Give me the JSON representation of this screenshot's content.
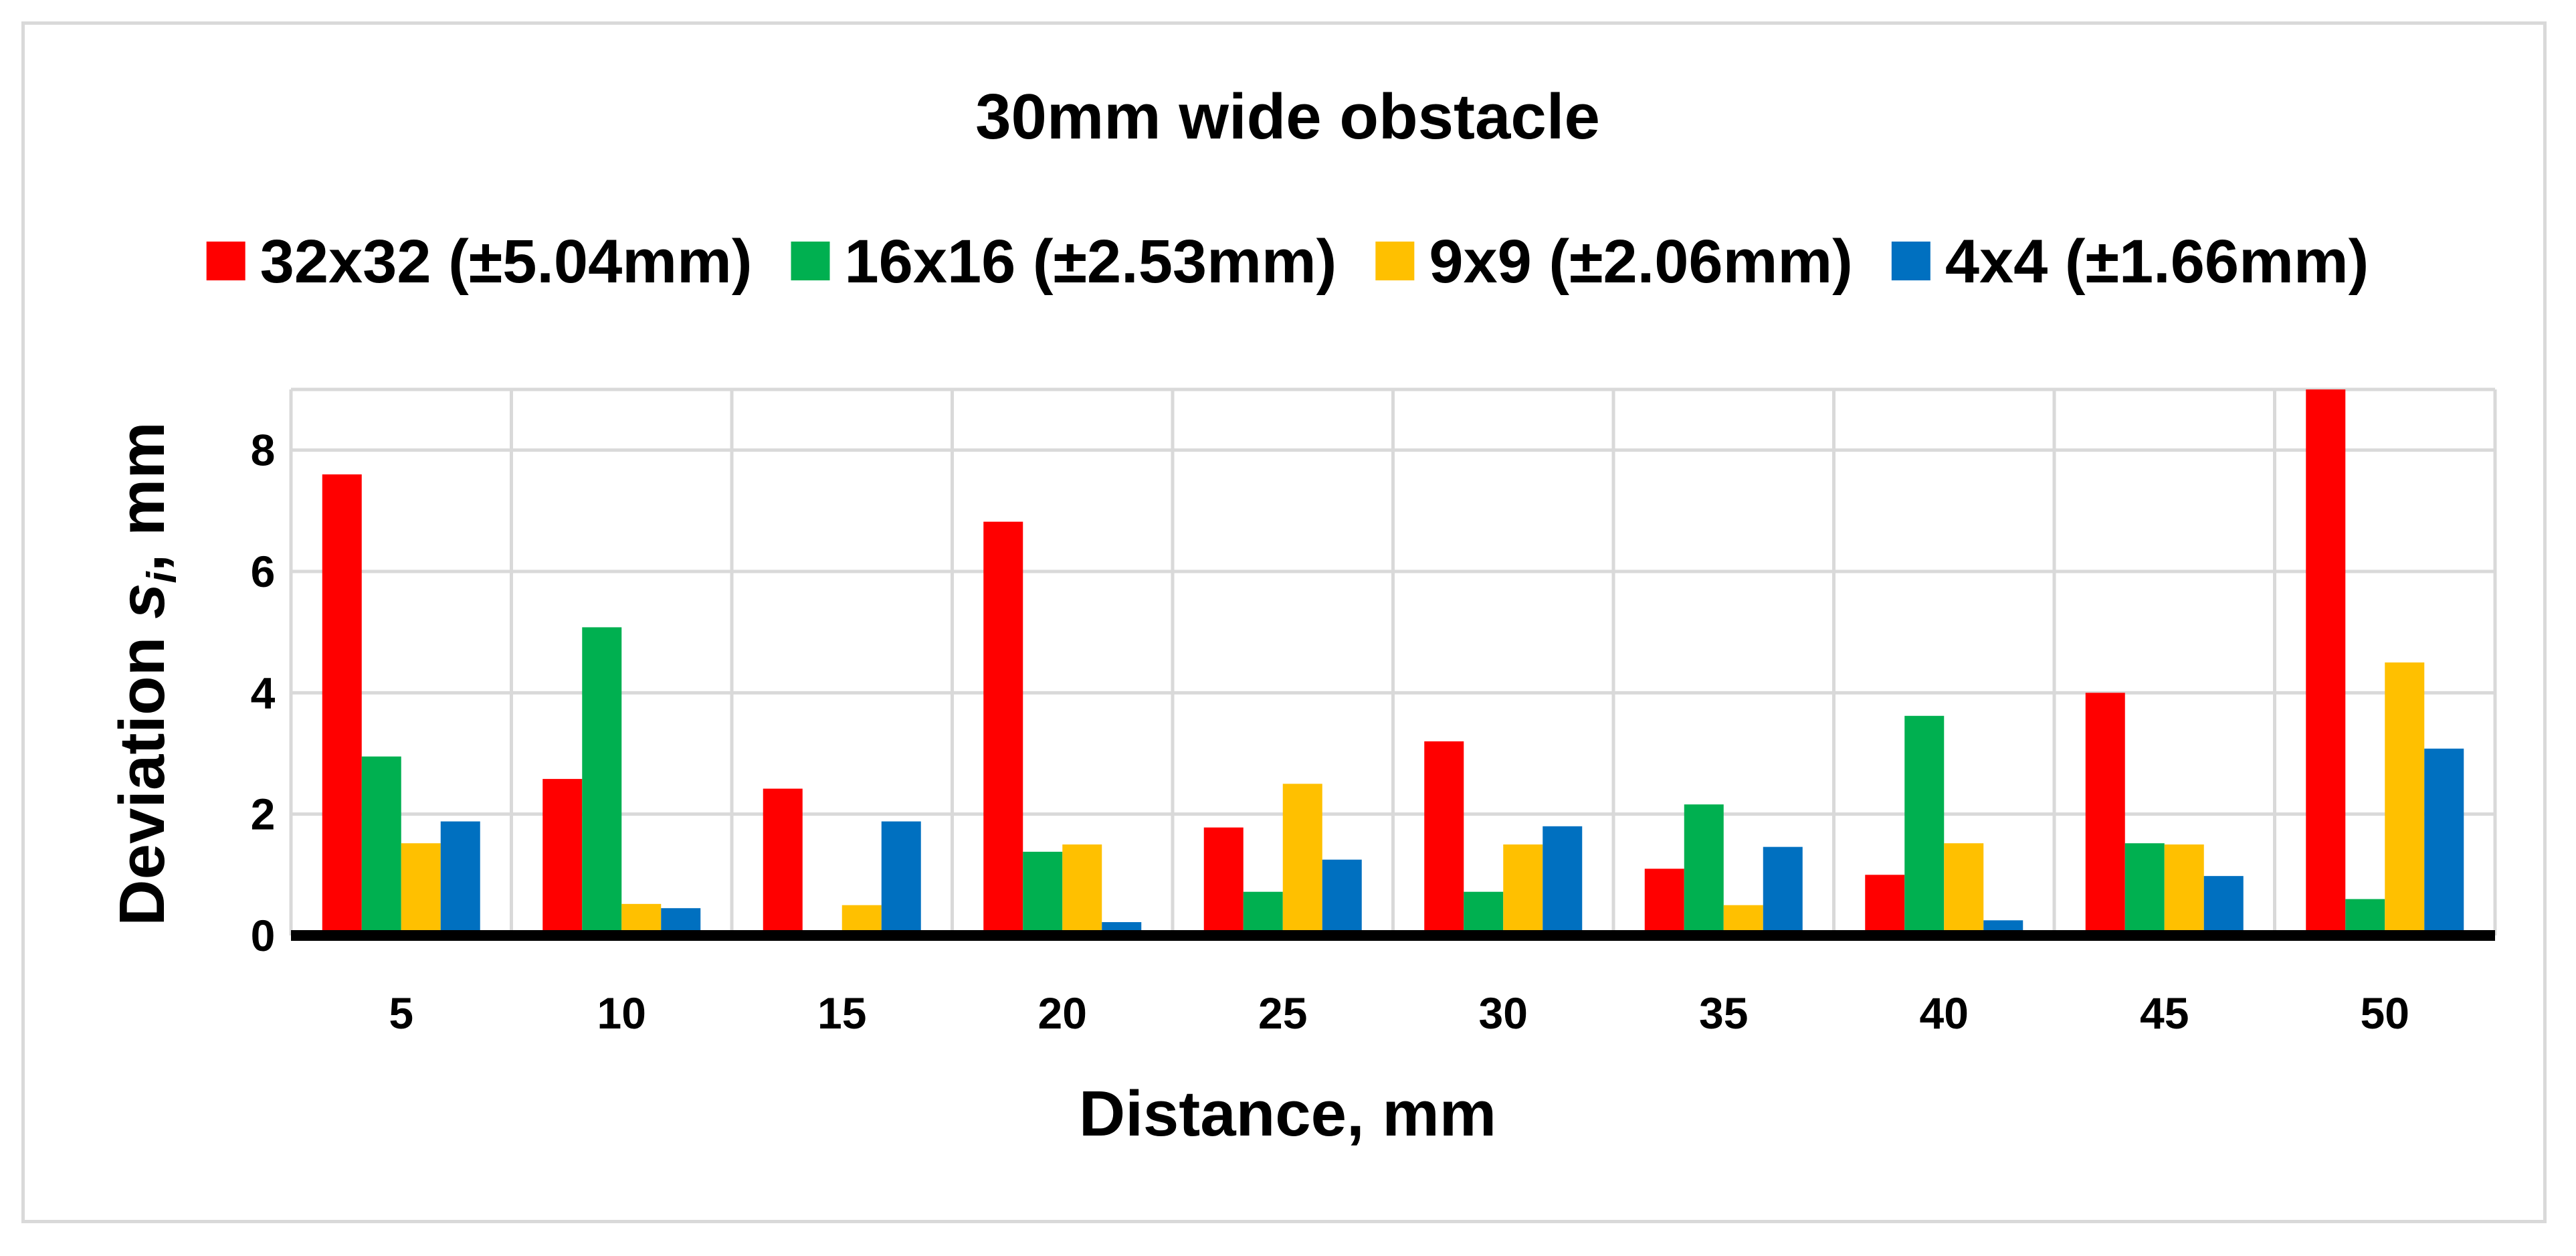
{
  "chart_data": {
    "type": "bar",
    "title": "30mm wide obstacle",
    "xlabel": "Distance, mm",
    "ylabel_prefix": "Deviation ",
    "ylabel_var": "s",
    "ylabel_sub": "i",
    "ylabel_suffix": ", mm",
    "categories": [
      "5",
      "10",
      "15",
      "20",
      "25",
      "30",
      "35",
      "40",
      "45",
      "50"
    ],
    "ylim": [
      0,
      9
    ],
    "yticks": [
      0,
      2,
      4,
      6,
      8
    ],
    "grid": true,
    "legend_position": "top",
    "series": [
      {
        "name": "32x32 (±5.04mm)",
        "color": "#ff0000",
        "values": [
          7.6,
          2.58,
          2.42,
          6.82,
          1.78,
          3.2,
          1.1,
          1.0,
          4.0,
          9.0
        ]
      },
      {
        "name": "16x16 (±2.53mm)",
        "color": "#00b050",
        "values": [
          2.95,
          5.08,
          0,
          1.38,
          0.72,
          0.72,
          2.16,
          3.62,
          1.52,
          0.6
        ]
      },
      {
        "name": "9x9 (±2.06mm)",
        "color": "#ffc000",
        "values": [
          1.52,
          0.52,
          0.5,
          1.5,
          2.5,
          1.5,
          0.5,
          1.52,
          1.5,
          4.5
        ]
      },
      {
        "name": "4x4 (±1.66mm)",
        "color": "#0070c0",
        "values": [
          1.88,
          0.45,
          1.88,
          0.22,
          1.25,
          1.8,
          1.46,
          0.25,
          0.98,
          3.08
        ]
      }
    ]
  }
}
